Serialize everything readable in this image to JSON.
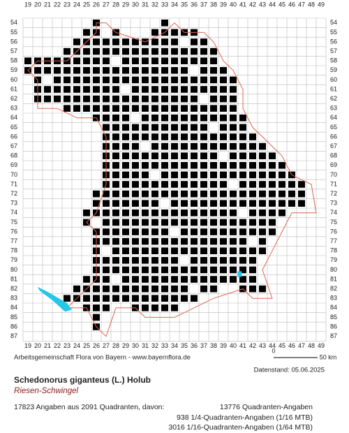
{
  "map": {
    "columns": [
      "19",
      "20",
      "21",
      "22",
      "23",
      "24",
      "25",
      "26",
      "27",
      "28",
      "29",
      "30",
      "31",
      "32",
      "33",
      "34",
      "35",
      "36",
      "37",
      "38",
      "39",
      "40",
      "41",
      "42",
      "43",
      "44",
      "45",
      "46",
      "47",
      "48",
      "49"
    ],
    "rows": [
      "54",
      "55",
      "56",
      "57",
      "58",
      "59",
      "60",
      "61",
      "62",
      "63",
      "64",
      "65",
      "66",
      "67",
      "68",
      "69",
      "70",
      "71",
      "72",
      "73",
      "74",
      "75",
      "76",
      "77",
      "78",
      "79",
      "80",
      "81",
      "82",
      "83",
      "84",
      "85",
      "86",
      "87"
    ],
    "scale": {
      "start": "0",
      "end": "50 km"
    },
    "credit": "Arbeitsgemeinschaft Flora von Bayern - www.bayernflora.de",
    "date": "Datenstand: 05.06.2025",
    "title": "Schedonorus giganteus (L.) Holub",
    "subtitle": "Riesen-Schwingel",
    "summary": "17823 Angaben aus 2091 Quadranten, davon:",
    "details": [
      "13776 Quadranten-Angaben",
      "938 1/4-Quadranten-Angaben (1/16 MTB)",
      "3016 1/16-Quadranten-Angaben (1/64 MTB)"
    ]
  }
}
